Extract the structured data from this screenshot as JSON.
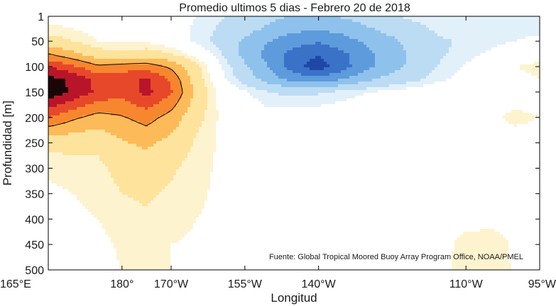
{
  "chart_data": {
    "type": "heatmap",
    "title": "Promedio ultimos 5 dias - Febrero 20 de 2018",
    "xlabel": "Longitud",
    "ylabel": "Profundidad [m]",
    "source_note": "Fuente: Global Tropical Moored Buoy Array Program Office, NOAA/PMEL",
    "x_ticks": [
      {
        "value": 165,
        "label": "165°E"
      },
      {
        "value": 180,
        "label": "180°"
      },
      {
        "value": 190,
        "label": "170°W"
      },
      {
        "value": 205,
        "label": "155°W"
      },
      {
        "value": 220,
        "label": "140°W"
      },
      {
        "value": 250,
        "label": "110°W"
      },
      {
        "value": 265,
        "label": "95°W"
      }
    ],
    "y_ticks": [
      1,
      50,
      100,
      150,
      200,
      250,
      300,
      350,
      400,
      450,
      500
    ],
    "xlim": [
      165,
      265
    ],
    "ylim": [
      1,
      500
    ],
    "y_reversed": true,
    "x": [
      165,
      170,
      175,
      180,
      185,
      190,
      195,
      200,
      205,
      210,
      215,
      220,
      225,
      230,
      235,
      240,
      245,
      250,
      255,
      260,
      265
    ],
    "depths": [
      1,
      25,
      50,
      75,
      100,
      125,
      150,
      200,
      250,
      300,
      350,
      400,
      450,
      500
    ],
    "z": [
      [
        0.3,
        0.3,
        0.0,
        0.1,
        0.0,
        -0.1,
        -0.5,
        -0.9,
        -1.3,
        -1.7,
        -2.1,
        -2.2,
        -1.9,
        -1.5,
        -1.1,
        -0.8,
        -0.5,
        -0.5,
        -0.6,
        -0.6,
        -0.6
      ],
      [
        0.6,
        0.5,
        0.2,
        0.3,
        0.2,
        -0.1,
        -0.6,
        -1.1,
        -1.6,
        -2.2,
        -2.7,
        -2.9,
        -2.6,
        -2.1,
        -1.6,
        -1.2,
        -0.8,
        -0.7,
        -0.7,
        -0.6,
        -0.6
      ],
      [
        1.4,
        1.0,
        0.5,
        0.5,
        0.4,
        0.0,
        -0.6,
        -1.3,
        -2.2,
        -3.0,
        -3.6,
        -3.9,
        -3.4,
        -2.8,
        -2.2,
        -1.6,
        -1.1,
        -0.9,
        -0.7,
        -0.5,
        -0.4
      ],
      [
        3.0,
        2.2,
        1.4,
        1.1,
        1.4,
        1.0,
        0.2,
        -0.9,
        -2.4,
        -3.4,
        -4.4,
        -4.9,
        -4.2,
        -3.2,
        -2.4,
        -1.7,
        -1.1,
        -0.7,
        -0.4,
        0.1,
        0.4
      ],
      [
        5.0,
        4.2,
        3.2,
        3.5,
        3.6,
        2.8,
        1.3,
        -0.4,
        -1.8,
        -3.1,
        -4.6,
        -5.6,
        -4.4,
        -3.2,
        -2.4,
        -1.6,
        -0.9,
        -0.4,
        -0.1,
        0.5,
        0.6
      ],
      [
        6.4,
        5.8,
        4.7,
        4.6,
        5.2,
        3.8,
        1.5,
        -0.2,
        -1.4,
        -2.5,
        -3.4,
        -3.6,
        -3.0,
        -2.2,
        -1.6,
        -1.1,
        -0.6,
        -0.2,
        0.2,
        0.4,
        0.5
      ],
      [
        6.8,
        5.8,
        4.8,
        4.3,
        5.3,
        4.1,
        1.8,
        0.3,
        -0.4,
        -1.0,
        -1.2,
        -1.1,
        -0.8,
        -0.5,
        -0.3,
        -0.1,
        0.1,
        0.2,
        0.3,
        0.3,
        0.3
      ],
      [
        4.0,
        3.2,
        2.6,
        2.9,
        3.4,
        2.6,
        1.3,
        0.4,
        0.1,
        -0.2,
        -0.1,
        0.0,
        0.1,
        0.2,
        0.2,
        0.3,
        0.3,
        0.3,
        0.4,
        0.6,
        0.5
      ],
      [
        1.2,
        1.3,
        1.2,
        1.9,
        2.2,
        1.7,
        0.9,
        0.4,
        0.2,
        0.2,
        0.2,
        0.3,
        0.3,
        0.3,
        0.3,
        0.3,
        0.3,
        0.3,
        0.3,
        0.3,
        0.3
      ],
      [
        0.6,
        0.7,
        0.8,
        1.3,
        1.4,
        1.1,
        0.7,
        0.4,
        0.3,
        0.3,
        0.3,
        0.3,
        0.3,
        0.3,
        0.3,
        0.3,
        0.3,
        0.3,
        0.3,
        0.3,
        0.3
      ],
      [
        0.4,
        0.5,
        0.6,
        1.0,
        1.1,
        0.9,
        0.6,
        0.4,
        0.3,
        0.3,
        0.3,
        0.3,
        0.3,
        0.3,
        0.3,
        0.3,
        0.3,
        0.3,
        0.3,
        0.3,
        0.3
      ],
      [
        0.3,
        0.4,
        0.5,
        0.8,
        0.9,
        0.8,
        0.5,
        0.4,
        0.3,
        0.3,
        0.3,
        0.3,
        0.3,
        0.3,
        0.3,
        0.3,
        0.3,
        0.3,
        0.3,
        0.3,
        0.3
      ],
      [
        0.1,
        0.2,
        0.3,
        0.6,
        0.7,
        0.5,
        0.4,
        0.3,
        0.2,
        0.2,
        0.2,
        0.2,
        0.3,
        0.3,
        0.3,
        0.3,
        0.3,
        0.7,
        0.8,
        0.4,
        0.3
      ],
      [
        0.1,
        0.2,
        0.3,
        0.5,
        0.6,
        0.5,
        0.4,
        0.3,
        0.2,
        0.2,
        0.2,
        0.3,
        0.3,
        0.3,
        0.3,
        0.3,
        0.3,
        0.8,
        0.9,
        0.4,
        0.3
      ]
    ],
    "contour_levels": [
      -5,
      -4,
      -3,
      -2,
      -1,
      -0.5,
      0.5,
      1,
      2,
      3,
      4,
      5,
      6
    ],
    "contour_colors": [
      "#1f48a6",
      "#3a72c8",
      "#5d9bdc",
      "#8ec2ec",
      "#bcdcf4",
      "#e2f0fa",
      "#ffffff",
      "#fef3cf",
      "#fde39b",
      "#fdba58",
      "#f7872e",
      "#e8482a",
      "#b9152a",
      "#1a0606"
    ],
    "line_level": 3,
    "line_color": "#000000",
    "grid": false,
    "legend": "none"
  }
}
